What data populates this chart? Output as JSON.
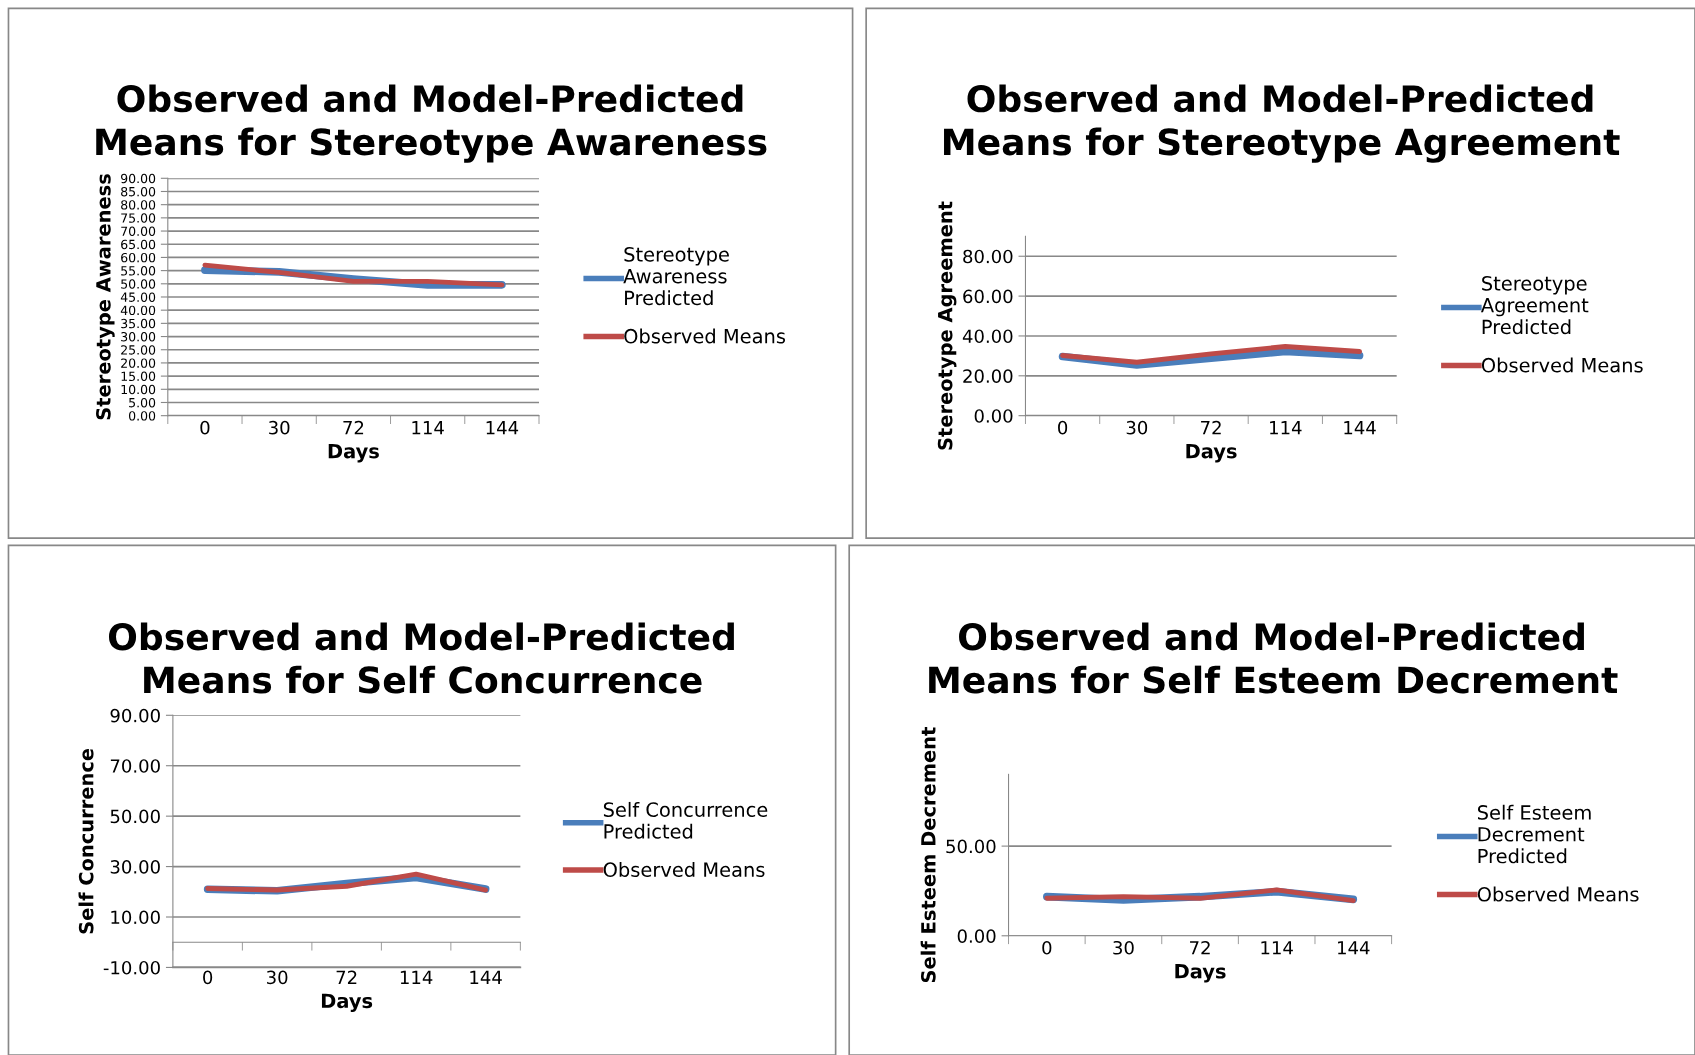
{
  "chart_data": [
    {
      "type": "line",
      "title": "Observed and Model-Predicted Means for Stereotype Awareness",
      "xlabel": "Days",
      "ylabel": "Stereotype Awareness",
      "categories": [
        "0",
        "30",
        "72",
        "114",
        "144"
      ],
      "series": [
        {
          "name": "Stereotype Awareness Predicted",
          "color": "#4a7ebb",
          "values": [
            55.2,
            54.5,
            51.8,
            49.6,
            49.6
          ]
        },
        {
          "name": "Observed Means",
          "color": "#be4b48",
          "values": [
            57.1,
            54.3,
            50.9,
            50.9,
            49.6
          ]
        }
      ],
      "ylim": [
        0,
        90
      ],
      "yticks": [
        {
          "value": 0,
          "label": "0.00"
        },
        {
          "value": 5,
          "label": "5.00"
        },
        {
          "value": 10,
          "label": "10.00"
        },
        {
          "value": 15,
          "label": "15.00"
        },
        {
          "value": 20,
          "label": "20.00"
        },
        {
          "value": 25,
          "label": "25.00"
        },
        {
          "value": 30,
          "label": "30.00"
        },
        {
          "value": 35,
          "label": "35.00"
        },
        {
          "value": 40,
          "label": "40.00"
        },
        {
          "value": 45,
          "label": "45.00"
        },
        {
          "value": 50,
          "label": "50.00"
        },
        {
          "value": 55,
          "label": "55.00"
        },
        {
          "value": 60,
          "label": "60.00"
        },
        {
          "value": 65,
          "label": "65.00"
        },
        {
          "value": 70,
          "label": "70.00"
        },
        {
          "value": 75,
          "label": "75.00"
        },
        {
          "value": 80,
          "label": "80.00"
        },
        {
          "value": 85,
          "label": "85.00"
        },
        {
          "value": 90,
          "label": "90.00"
        }
      ],
      "grid": "y",
      "legend": "right"
    },
    {
      "type": "line",
      "title": "Observed and Model-Predicted Means for Stereotype Agreement",
      "xlabel": "Days",
      "ylabel": "Stereotype Agreement",
      "categories": [
        "0",
        "30",
        "72",
        "114",
        "144"
      ],
      "series": [
        {
          "name": "Stereotype Agreement Predicted",
          "color": "#4a7ebb",
          "values": [
            29.7,
            25.5,
            28.8,
            32.2,
            30.2
          ]
        },
        {
          "name": "Observed Means",
          "color": "#be4b48",
          "values": [
            30.2,
            26.8,
            31.0,
            34.7,
            32.2
          ]
        }
      ],
      "ylim": [
        0,
        90
      ],
      "yticks": [
        {
          "value": 0,
          "label": "0.00"
        },
        {
          "value": 20,
          "label": "20.00"
        },
        {
          "value": 40,
          "label": "40.00"
        },
        {
          "value": 60,
          "label": "60.00"
        },
        {
          "value": 80,
          "label": "80.00"
        }
      ],
      "grid": "y",
      "legend": "right"
    },
    {
      "type": "line",
      "title": "Observed and Model-Predicted Means for Self Concurrence",
      "xlabel": "Days",
      "ylabel": "Self Concurrence",
      "categories": [
        "0",
        "30",
        "72",
        "114",
        "144"
      ],
      "series": [
        {
          "name": "Self Concurrence Predicted",
          "color": "#4a7ebb",
          "values": [
            21.0,
            20.4,
            23.3,
            25.7,
            21.1
          ]
        },
        {
          "name": "Observed Means",
          "color": "#be4b48",
          "values": [
            21.3,
            20.7,
            22.2,
            27.0,
            20.7
          ]
        }
      ],
      "ylim": [
        -10,
        90
      ],
      "yticks": [
        {
          "value": -10,
          "label": "-10.00"
        },
        {
          "value": 10,
          "label": "10.00"
        },
        {
          "value": 30,
          "label": "30.00"
        },
        {
          "value": 50,
          "label": "50.00"
        },
        {
          "value": 70,
          "label": "70.00"
        },
        {
          "value": 90,
          "label": "90.00"
        }
      ],
      "grid": "y",
      "legend": "right"
    },
    {
      "type": "line",
      "title": "Observed and Model-Predicted Means for Self Esteem Decrement",
      "xlabel": "Days",
      "ylabel": "Self Esteem Decrement",
      "categories": [
        "0",
        "30",
        "72",
        "114",
        "144"
      ],
      "series": [
        {
          "name": "Self Esteem Decrement Predicted",
          "color": "#4a7ebb",
          "values": [
            21.8,
            20.0,
            21.8,
            24.6,
            20.3
          ]
        },
        {
          "name": "Observed Means",
          "color": "#be4b48",
          "values": [
            20.9,
            21.8,
            20.9,
            25.6,
            19.6
          ]
        }
      ],
      "ylim": [
        0,
        90
      ],
      "yticks": [
        {
          "value": 0,
          "label": "0.00"
        },
        {
          "value": 50,
          "label": "50.00"
        }
      ],
      "grid": "y",
      "legend": "right"
    }
  ]
}
